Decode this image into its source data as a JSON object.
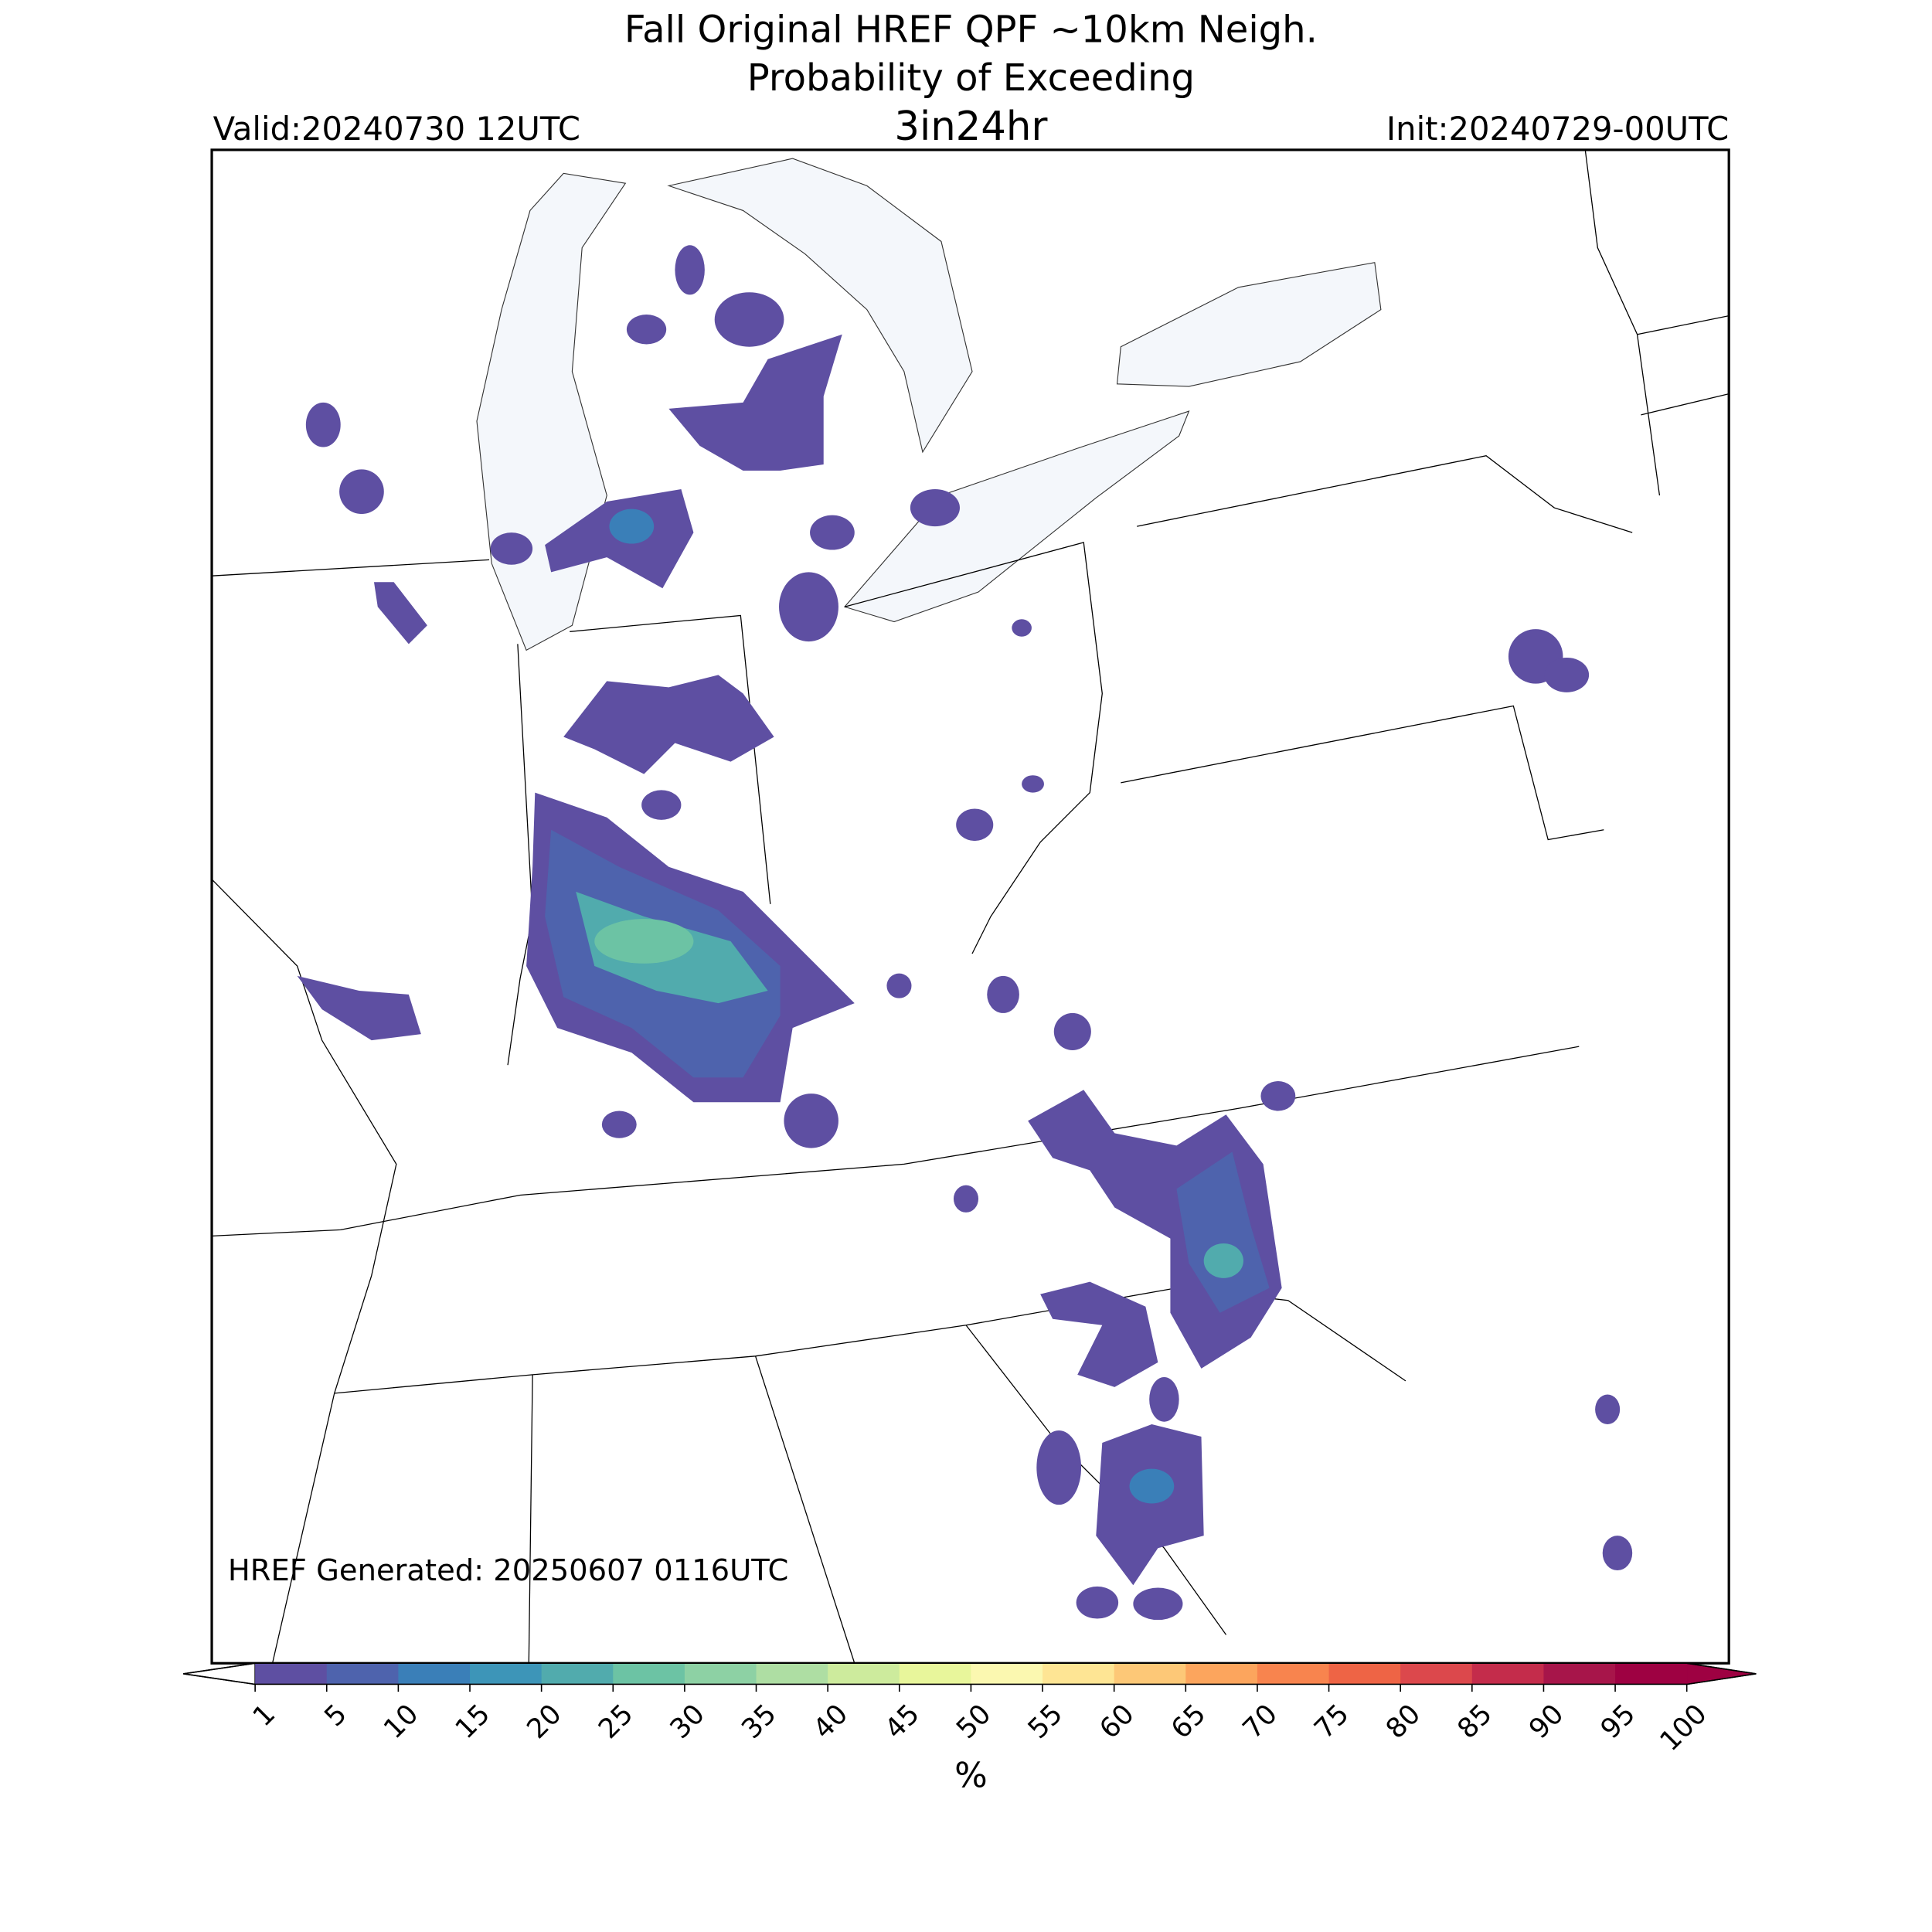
{
  "title": [
    "Fall Original HREF QPF ~10km Neigh.",
    "Probability of Exceeding",
    "3in24hr"
  ],
  "valid": "Valid:20240730 12UTC",
  "init": "Init:20240729-00UTC",
  "generated": "HREF Generated: 20250607 0116UTC",
  "colorbar": {
    "label": "%",
    "ticks": [
      1,
      5,
      10,
      15,
      20,
      25,
      30,
      35,
      40,
      45,
      50,
      55,
      60,
      65,
      70,
      75,
      80,
      85,
      90,
      95,
      100
    ],
    "colors": [
      "#5e4fa2",
      "#4e63ad",
      "#3a7fb8",
      "#3d95b8",
      "#51abad",
      "#6cc3a4",
      "#8dd1a4",
      "#aedea3",
      "#cdeb9d",
      "#e8f69b",
      "#fbf8b0",
      "#fee594",
      "#fdc877",
      "#fca55d",
      "#f8844e",
      "#ee6445",
      "#dc484c",
      "#c42c4b",
      "#a7154a",
      "#9e0142"
    ],
    "under": "#ffffff",
    "over": "#9e0142"
  }
}
